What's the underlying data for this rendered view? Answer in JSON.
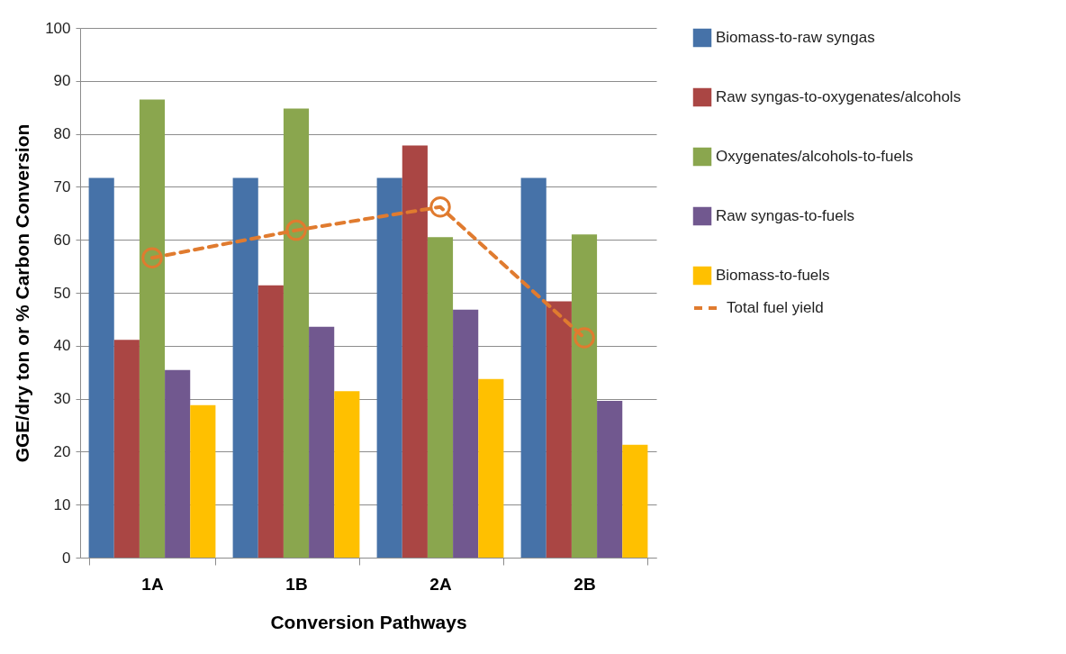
{
  "chart_data": {
    "type": "bar",
    "xlabel": "Conversion Pathways",
    "ylabel": "GGE/dry ton or % Carbon Conversion",
    "categories": [
      "1A",
      "1B",
      "2A",
      "2B"
    ],
    "series": [
      {
        "name": "Biomass-to-raw syngas",
        "color": "#4672a8",
        "values": [
          71.7,
          71.7,
          71.7,
          71.7
        ]
      },
      {
        "name": "Raw syngas-to-oxygenates/alcohols",
        "color": "#aa4644",
        "values": [
          41.1,
          51.4,
          77.8,
          48.4
        ]
      },
      {
        "name": "Oxygenates/alcohols-to-fuels",
        "color": "#8aa64e",
        "values": [
          86.5,
          84.8,
          60.5,
          61
        ]
      },
      {
        "name": "Raw syngas-to-fuels",
        "color": "#71588f",
        "values": [
          35.4,
          43.6,
          46.8,
          29.6
        ]
      },
      {
        "name": "Biomass-to-fuels",
        "color": "#ffc000",
        "values": [
          28.8,
          31.4,
          33.7,
          21.3
        ]
      },
      {
        "name": "Total fuel yield",
        "color": "#e07b2f",
        "type": "line",
        "values": [
          56.6,
          61.8,
          66.2,
          41.5
        ]
      }
    ],
    "ylim": [
      0,
      100
    ],
    "yticks": [
      0,
      10,
      20,
      30,
      40,
      50,
      60,
      70,
      80,
      90,
      100
    ],
    "grid": "y",
    "legend": "right",
    "marker": "circle",
    "line_style": "dashed"
  }
}
